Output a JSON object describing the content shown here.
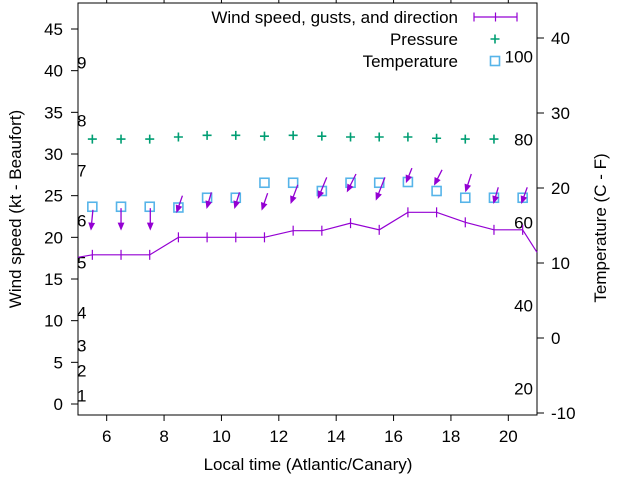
{
  "chart_data": {
    "type": "line",
    "title": "",
    "xlabel": "Local time (Atlantic/Canary)",
    "ylabel": "Wind speed (kt - Beaufort)",
    "y2label": "Temperature (C - F)",
    "background": "#ffffff",
    "border_color": "#000000",
    "x_range": [
      5,
      21
    ],
    "x_ticks": [
      6,
      8,
      10,
      12,
      14,
      16,
      18,
      20
    ],
    "y_left_axis": {
      "ticks": [
        0,
        5,
        10,
        15,
        20,
        25,
        30,
        35,
        40,
        45
      ],
      "range_at_borders": [
        -1.3,
        48.1
      ]
    },
    "y_right_axis": {
      "ticks": [
        -10,
        0,
        10,
        20,
        30,
        40
      ],
      "range_at_borders": [
        -10.3,
        44.7
      ]
    },
    "beaufort_scale": {
      "labels": [
        "1",
        "2",
        "3",
        "4",
        "5",
        "6",
        "7",
        "8",
        "9"
      ],
      "kt_positions": [
        1,
        4,
        7,
        11,
        17,
        22,
        28,
        34,
        41
      ]
    },
    "inner_axis": {
      "ticks": [
        20,
        40,
        60,
        80,
        100
      ],
      "kt_equivalents": [
        1.86,
        11.82,
        21.78,
        31.74,
        41.7
      ]
    },
    "legend": [
      {
        "label": "Wind speed, gusts, and direction",
        "series": "wind"
      },
      {
        "label": "Pressure",
        "series": "pressure"
      },
      {
        "label": "Temperature",
        "series": "temperature"
      }
    ],
    "series": {
      "wind": {
        "color": "#9400d3",
        "marker": "vertical-dash",
        "points": [
          [
            5.0,
            17.6
          ],
          [
            5.5,
            17.9
          ],
          [
            6.5,
            17.9
          ],
          [
            7.5,
            17.9
          ],
          [
            8.5,
            20.0
          ],
          [
            9.5,
            20.0
          ],
          [
            10.5,
            20.0
          ],
          [
            11.5,
            20.0
          ],
          [
            12.5,
            20.8
          ],
          [
            13.5,
            20.8
          ],
          [
            14.5,
            21.7
          ],
          [
            15.5,
            20.9
          ],
          [
            16.5,
            23.0
          ],
          [
            17.5,
            23.0
          ],
          [
            18.5,
            21.8
          ],
          [
            19.5,
            20.9
          ],
          [
            20.5,
            20.9
          ],
          [
            21.0,
            18.2
          ]
        ]
      },
      "gusts": {
        "color": "#9400d3",
        "marker": "arrow",
        "arrows": [
          [
            5.52,
            23.3,
            5.45,
            20.8
          ],
          [
            6.5,
            23.5,
            6.5,
            20.8
          ],
          [
            7.52,
            23.5,
            7.52,
            20.8
          ],
          [
            8.64,
            25.0,
            8.43,
            22.9
          ],
          [
            9.65,
            25.4,
            9.48,
            23.4
          ],
          [
            10.63,
            25.4,
            10.45,
            23.4
          ],
          [
            11.61,
            25.3,
            11.4,
            23.2
          ],
          [
            12.66,
            26.3,
            12.41,
            24.0
          ],
          [
            13.67,
            27.2,
            13.36,
            24.6
          ],
          [
            14.69,
            27.6,
            14.37,
            25.4
          ],
          [
            15.7,
            27.2,
            15.38,
            24.4
          ],
          [
            16.64,
            28.3,
            16.43,
            26.5
          ],
          [
            17.69,
            28.1,
            17.41,
            26.2
          ],
          [
            18.71,
            27.6,
            18.5,
            25.4
          ],
          [
            19.65,
            26.0,
            19.48,
            24.0
          ],
          [
            20.66,
            26.0,
            20.45,
            24.0
          ]
        ]
      },
      "pressure": {
        "color": "#009e73",
        "marker": "plus",
        "scale": "inner",
        "points": [
          [
            5.5,
            80.1
          ],
          [
            6.5,
            80.1
          ],
          [
            7.5,
            80.1
          ],
          [
            8.5,
            80.6
          ],
          [
            9.5,
            81.0
          ],
          [
            10.5,
            81.0
          ],
          [
            11.5,
            80.8
          ],
          [
            12.5,
            81.0
          ],
          [
            13.5,
            80.8
          ],
          [
            14.5,
            80.6
          ],
          [
            15.5,
            80.6
          ],
          [
            16.5,
            80.6
          ],
          [
            17.5,
            80.3
          ],
          [
            18.5,
            80.1
          ],
          [
            19.5,
            80.1
          ]
        ]
      },
      "temperature": {
        "color": "#56b4e9",
        "marker": "open-square",
        "scale": "right_celsius",
        "points": [
          [
            5.5,
            17.5
          ],
          [
            6.5,
            17.5
          ],
          [
            7.5,
            17.5
          ],
          [
            8.5,
            17.4
          ],
          [
            9.5,
            18.7
          ],
          [
            10.5,
            18.7
          ],
          [
            11.5,
            20.7
          ],
          [
            12.5,
            20.7
          ],
          [
            13.5,
            19.6
          ],
          [
            14.5,
            20.7
          ],
          [
            15.5,
            20.7
          ],
          [
            16.5,
            20.8
          ],
          [
            17.5,
            19.6
          ],
          [
            18.5,
            18.7
          ],
          [
            19.5,
            18.7
          ],
          [
            20.5,
            18.7
          ]
        ]
      }
    }
  }
}
